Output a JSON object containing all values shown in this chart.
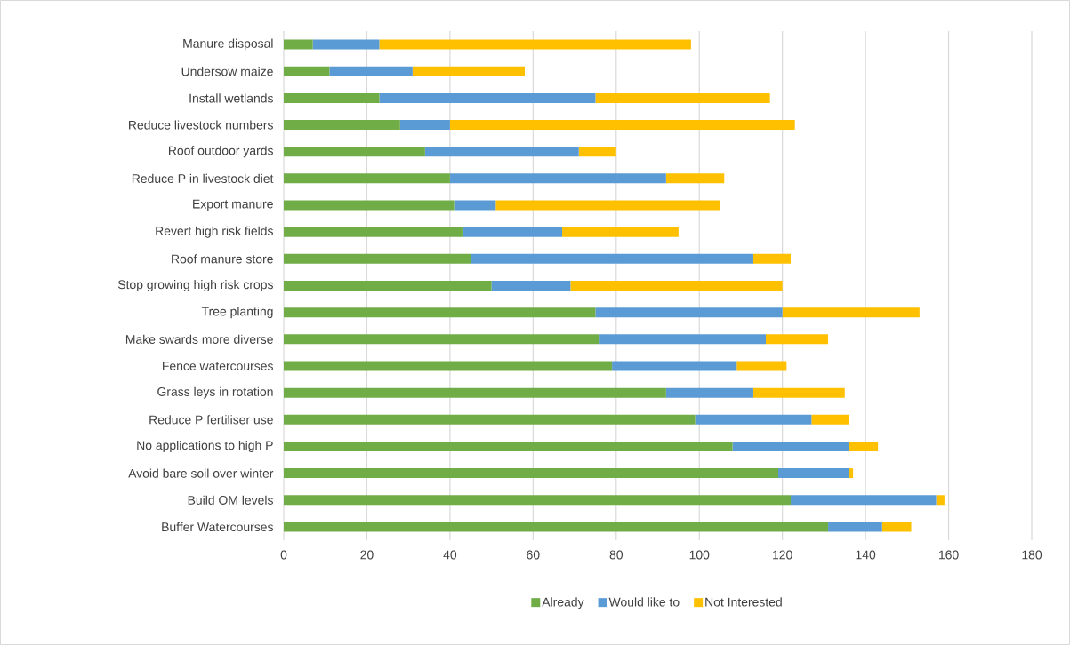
{
  "chart_data": {
    "type": "bar",
    "orientation": "horizontal",
    "stacked": true,
    "categories": [
      "Manure disposal",
      "Undersow maize",
      "Install wetlands",
      "Reduce livestock numbers",
      "Roof outdoor yards",
      "Reduce P in livestock diet",
      "Export manure",
      "Revert high risk fields",
      "Roof manure store",
      "Stop growing high risk crops",
      "Tree planting",
      "Make swards more diverse",
      "Fence watercourses",
      "Grass leys in rotation",
      "Reduce P fertiliser use",
      "No applications to high P",
      "Avoid bare soil over winter",
      "Build OM levels",
      "Buffer Watercourses"
    ],
    "series": [
      {
        "name": "Already",
        "color": "#70ad47",
        "values": [
          7,
          11,
          23,
          28,
          34,
          40,
          41,
          43,
          45,
          50,
          75,
          76,
          79,
          92,
          99,
          108,
          119,
          122,
          131
        ]
      },
      {
        "name": "Would like to",
        "color": "#5b9bd5",
        "values": [
          16,
          20,
          52,
          12,
          37,
          52,
          10,
          24,
          68,
          19,
          45,
          40,
          30,
          21,
          28,
          28,
          17,
          35,
          13
        ]
      },
      {
        "name": "Not Interested",
        "color": "#ffc000",
        "values": [
          75,
          27,
          42,
          83,
          9,
          14,
          54,
          28,
          9,
          51,
          33,
          15,
          12,
          22,
          9,
          7,
          1,
          2,
          7
        ]
      }
    ],
    "xlim": [
      0,
      180
    ],
    "xticks": [
      0,
      20,
      40,
      60,
      80,
      100,
      120,
      140,
      160,
      180
    ],
    "grid": "x",
    "legend": "bottom"
  }
}
